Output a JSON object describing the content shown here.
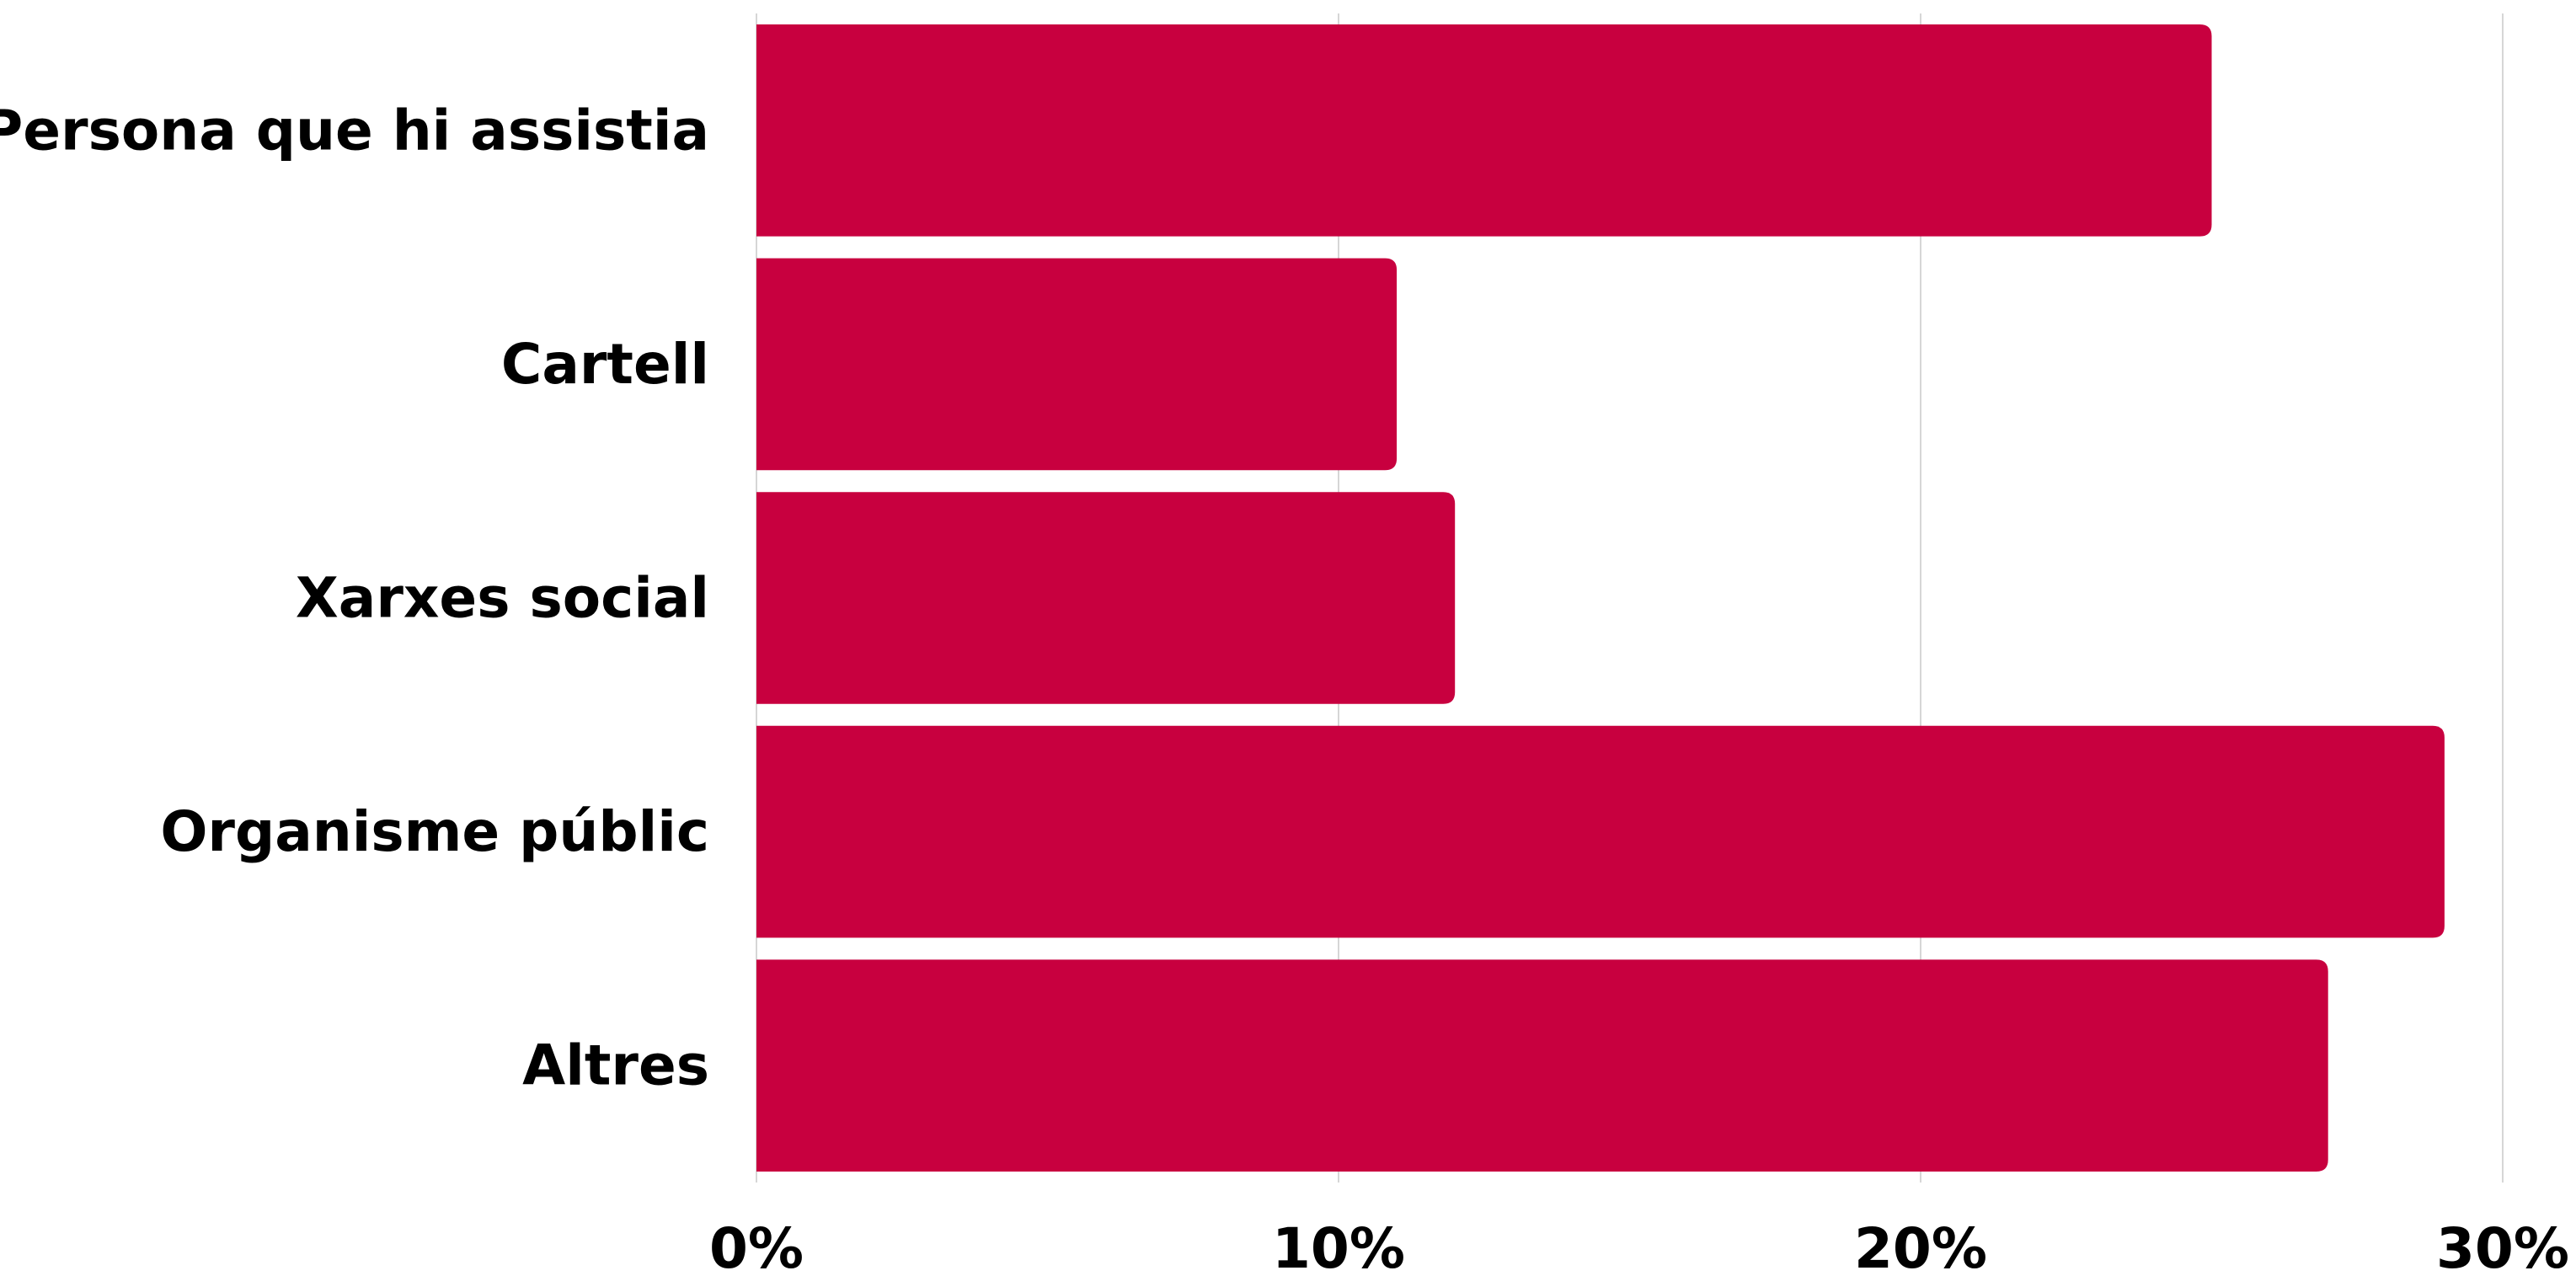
{
  "chart_data": {
    "type": "bar",
    "orientation": "horizontal",
    "categories": [
      "Persona que hi assistia",
      "Cartell",
      "Xarxes social",
      "Organisme públic",
      "Altres"
    ],
    "values": [
      25,
      11,
      12,
      29,
      27
    ],
    "unit": "%",
    "xlim": [
      0,
      30
    ],
    "x_ticks": [
      0,
      10,
      20,
      30
    ],
    "x_tick_labels": [
      "0%",
      "10%",
      "20%",
      "30%"
    ],
    "title": "",
    "xlabel": "",
    "ylabel": "",
    "grid": true,
    "legend": "none",
    "bar_color": "#c8003f",
    "grid_color": "#d6d6d6"
  }
}
